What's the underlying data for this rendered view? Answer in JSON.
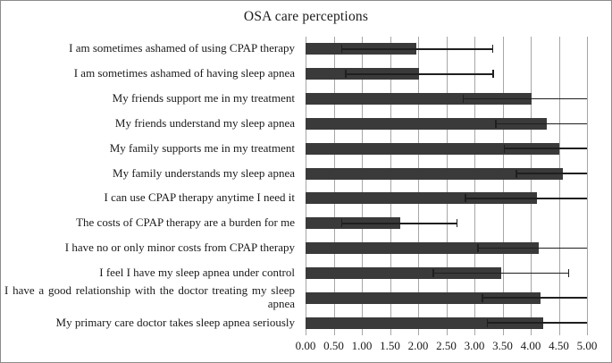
{
  "chart_data": {
    "type": "bar",
    "orientation": "horizontal",
    "title": "OSA care perceptions",
    "xlabel": "",
    "ylabel": "",
    "xlim": [
      0,
      5
    ],
    "grid": true,
    "legend": "none",
    "bar_color": "#3a3a3a",
    "error_bar_color": "#1f1f1f",
    "gridline_color": "#a6a6a6",
    "x_ticks": [
      "0.00",
      "0.50",
      "1.00",
      "1.50",
      "2.00",
      "2.50",
      "3.00",
      "3.50",
      "4.00",
      "4.50",
      "5.00"
    ],
    "categories": [
      "I am sometimes ashamed of using CPAP therapy",
      "I am sometimes ashamed of having sleep apnea",
      "My friends support me in my treatment",
      "My friends understand my sleep apnea",
      "My family supports me in my treatment",
      "My family understands my sleep apnea",
      "I can use CPAP therapy anytime I need it",
      "The costs of CPAP therapy are a burden for me",
      "I have no or only minor costs from CPAP therapy",
      "I feel I have my sleep apnea under control",
      "I have a good relationship with the doctor treating my sleep apnea",
      "My primary care doctor takes sleep apnea seriously"
    ],
    "values": [
      1.97,
      2.01,
      4.02,
      4.28,
      4.51,
      4.57,
      4.11,
      1.68,
      4.15,
      3.47,
      4.17,
      4.22
    ],
    "error_low": [
      0.63,
      0.7,
      2.79,
      3.37,
      3.52,
      3.73,
      2.83,
      0.63,
      3.05,
      2.26,
      3.13,
      3.22
    ],
    "error_high": [
      3.31,
      3.32,
      5.0,
      5.0,
      5.0,
      5.0,
      5.0,
      2.68,
      5.0,
      4.66,
      5.0,
      5.0
    ]
  }
}
